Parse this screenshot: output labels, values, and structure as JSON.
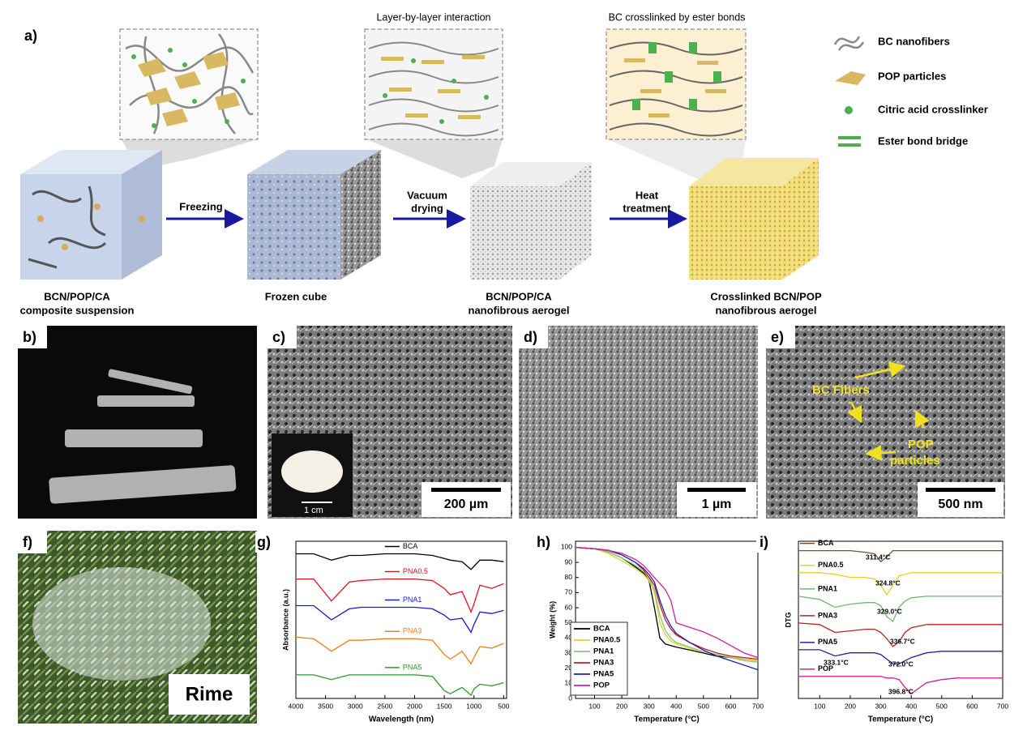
{
  "panel_a": {
    "label": "a)",
    "insets": [
      "Layer-by-layer interaction",
      "BC crosslinked by ester bonds"
    ],
    "steps": [
      [
        "Freezing"
      ],
      [
        "Vacuum",
        "drying"
      ],
      [
        "Heat",
        "treatment"
      ]
    ],
    "captions": [
      [
        "BCN/POP/CA",
        "composite suspension"
      ],
      [
        "Frozen cube"
      ],
      [
        "BCN/POP/CA",
        "nanofibrous aerogel"
      ],
      [
        "Crosslinked BCN/POP",
        "nanofibrous aerogel"
      ]
    ],
    "legend": [
      "BC nanofibers",
      "POP particles",
      "Citric acid crosslinker",
      "Ester bond bridge"
    ]
  },
  "photos": {
    "b": {
      "label": "b)"
    },
    "c": {
      "label": "c)",
      "scale_bar": "200 µm",
      "inset_scale_bar": "1 cm"
    },
    "d": {
      "label": "d)",
      "scale_bar": "1 µm"
    },
    "e": {
      "label": "e)",
      "scale_bar": "500 nm",
      "annotations": [
        "BC Fibers",
        "POP",
        "particles"
      ]
    },
    "f": {
      "label": "f)",
      "caption": "Rime"
    }
  },
  "chart_data": [
    {
      "type": "line",
      "panel_label": "g)",
      "x_label": "Wavelength (nm)",
      "y_label": "Absorbance (a.u.)",
      "legend": "inline",
      "x": [
        4000,
        3700,
        3400,
        3100,
        2900,
        2500,
        2000,
        1700,
        1500,
        1400,
        1200,
        1050,
        1000,
        900,
        700,
        500
      ],
      "xlim": [
        4000,
        450
      ],
      "xticks": [
        4000,
        3500,
        3000,
        2500,
        2000,
        1500,
        1000,
        500
      ],
      "ylim": [
        0,
        100
      ],
      "series": [
        {
          "name": "BCA",
          "color": "#000000",
          "values": [
            92,
            92,
            88,
            91,
            91,
            92,
            92,
            91,
            89,
            88,
            87,
            82,
            84,
            88,
            88,
            87
          ]
        },
        {
          "name": "PNA0.5",
          "color": "#e0101e",
          "values": [
            76,
            76,
            62,
            74,
            75,
            76,
            76,
            75,
            70,
            66,
            68,
            55,
            60,
            72,
            70,
            73
          ]
        },
        {
          "name": "PNA1",
          "color": "#1a1ad0",
          "values": [
            59,
            59,
            50,
            57,
            58,
            58,
            58,
            57,
            53,
            50,
            51,
            42,
            47,
            55,
            54,
            56
          ]
        },
        {
          "name": "PNA3",
          "color": "#e8821a",
          "values": [
            39,
            38,
            30,
            37,
            37,
            38,
            38,
            37,
            28,
            25,
            30,
            22,
            26,
            33,
            32,
            35
          ]
        },
        {
          "name": "PNA5",
          "color": "#2a9a2a",
          "values": [
            15,
            15,
            12,
            15,
            15,
            15,
            15,
            14,
            5,
            3,
            7,
            2,
            6,
            9,
            8,
            10
          ]
        }
      ]
    },
    {
      "type": "line",
      "panel_label": "h)",
      "x_label": "Temperature (°C)",
      "y_label": "Weight (%)",
      "legend": "lower left",
      "x": [
        30,
        100,
        150,
        200,
        250,
        280,
        300,
        320,
        340,
        360,
        380,
        400,
        450,
        500,
        550,
        600,
        650,
        700
      ],
      "xlim": [
        30,
        700
      ],
      "xticks": [
        100,
        200,
        300,
        400,
        500,
        600,
        700
      ],
      "ylim": [
        0,
        104
      ],
      "yticks": [
        0,
        10,
        20,
        30,
        40,
        50,
        60,
        70,
        80,
        90,
        100
      ],
      "series": [
        {
          "name": "BCA",
          "color": "#000000",
          "values": [
            100,
            99,
            97,
            93,
            87,
            83,
            78,
            60,
            40,
            36,
            35,
            34,
            32,
            30,
            28,
            27,
            26,
            25
          ]
        },
        {
          "name": "PNA0.5",
          "color": "#e8d020",
          "values": [
            100,
            99,
            96,
            91,
            86,
            82,
            78,
            70,
            50,
            42,
            38,
            36,
            33,
            31,
            29,
            27,
            26,
            25
          ]
        },
        {
          "name": "PNA1",
          "color": "#80c880",
          "values": [
            100,
            99,
            97,
            93,
            88,
            84,
            80,
            72,
            55,
            45,
            40,
            37,
            34,
            31,
            29,
            27,
            25,
            24
          ]
        },
        {
          "name": "PNA3",
          "color": "#c02020",
          "values": [
            100,
            99,
            98,
            95,
            90,
            85,
            80,
            75,
            62,
            52,
            46,
            42,
            37,
            33,
            30,
            28,
            27,
            26
          ]
        },
        {
          "name": "PNA5",
          "color": "#2020b0",
          "values": [
            100,
            99,
            98,
            95,
            90,
            86,
            82,
            77,
            65,
            55,
            48,
            43,
            37,
            32,
            28,
            25,
            22,
            19
          ]
        },
        {
          "name": "POP",
          "color": "#d020a0",
          "values": [
            100,
            99,
            98,
            96,
            92,
            88,
            84,
            80,
            76,
            72,
            65,
            50,
            47,
            44,
            40,
            35,
            30,
            27
          ]
        }
      ]
    },
    {
      "type": "line",
      "panel_label": "i)",
      "x_label": "Temperature (°C)",
      "y_label": "DTG",
      "legend": "inline",
      "x": [
        30,
        100,
        150,
        200,
        250,
        280,
        300,
        320,
        340,
        360,
        380,
        400,
        450,
        500,
        550,
        600,
        650,
        700
      ],
      "xlim": [
        30,
        700
      ],
      "xticks": [
        100,
        200,
        300,
        400,
        500,
        600,
        700
      ],
      "ylim": [
        0,
        100
      ],
      "annotations": [
        "311.4°C",
        "324.8°C",
        "329.0°C",
        "336.7°C",
        "333.1°C",
        "372.0°C",
        "396.8°C"
      ],
      "series": [
        {
          "name": "BCA",
          "color": "#7a5030",
          "values": [
            94,
            94,
            94,
            94,
            93,
            92,
            87,
            90,
            94,
            94,
            94,
            94,
            94,
            94,
            94,
            94,
            94,
            94
          ]
        },
        {
          "name": "PNA0.5",
          "color": "#e8d020",
          "values": [
            80,
            80,
            79,
            77,
            77,
            76,
            72,
            66,
            72,
            78,
            79,
            80,
            80,
            80,
            80,
            80,
            80,
            80
          ]
        },
        {
          "name": "PNA1",
          "color": "#70b870",
          "values": [
            65,
            63,
            58,
            60,
            61,
            61,
            59,
            52,
            49,
            58,
            62,
            64,
            65,
            65,
            65,
            65,
            65,
            65
          ]
        },
        {
          "name": "PNA3",
          "color": "#c02020",
          "values": [
            48,
            47,
            42,
            43,
            44,
            44,
            42,
            38,
            33,
            36,
            42,
            45,
            47,
            47,
            47,
            47,
            47,
            47
          ]
        },
        {
          "name": "PNA5",
          "color": "#2020b0",
          "values": [
            31,
            31,
            27,
            29,
            29,
            29,
            28,
            25,
            22,
            22,
            24,
            26,
            29,
            30,
            30,
            30,
            30,
            30
          ]
        },
        {
          "name": "POP",
          "color": "#d020a0",
          "values": [
            14,
            14,
            14,
            14,
            14,
            14,
            14,
            13,
            13,
            12,
            7,
            3,
            10,
            12,
            13,
            13,
            13,
            13
          ]
        }
      ]
    }
  ]
}
